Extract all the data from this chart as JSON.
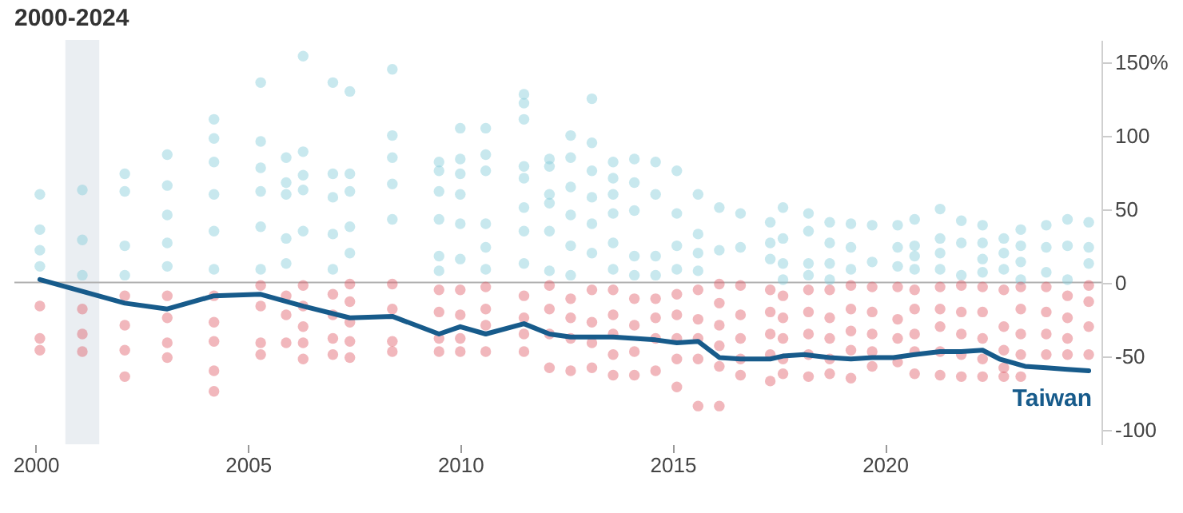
{
  "chart_data": {
    "type": "scatter",
    "title": "2000-2024",
    "xlim": [
      1999.5,
      2025.1
    ],
    "xticks": [
      2000,
      2005,
      2010,
      2015,
      2020
    ],
    "ylim": [
      -110,
      165
    ],
    "yticks": [
      {
        "value": 150,
        "label": "150%"
      },
      100,
      50,
      0,
      -50,
      -100
    ],
    "ref_lines": [
      {
        "axis": "y",
        "value": 0,
        "color": "#b0b0b0"
      }
    ],
    "bands": [
      {
        "axis": "x",
        "from": 2000.7,
        "to": 2001.5,
        "color": "#eaeef2"
      }
    ],
    "series": [
      {
        "color": "#86cbd9",
        "x": [
          2000.1,
          2000.1,
          2000.1,
          2000.1,
          2001.1,
          2001.1,
          2001.1,
          2002.1,
          2002.1,
          2002.1,
          2002.1,
          2003.1,
          2003.1,
          2003.1,
          2003.1,
          2003.1,
          2004.2,
          2004.2,
          2004.2,
          2004.2,
          2004.2,
          2004.2,
          2005.3,
          2005.3,
          2005.3,
          2005.3,
          2005.3,
          2005.3,
          2005.9,
          2005.9,
          2005.9,
          2005.9,
          2005.9,
          2006.3,
          2006.3,
          2006.3,
          2006.3,
          2006.3,
          2007.0,
          2007.0,
          2007.0,
          2007.0,
          2007.0,
          2007.4,
          2007.4,
          2007.4,
          2007.4,
          2007.4,
          2008.4,
          2008.4,
          2008.4,
          2008.4,
          2008.4,
          2009.5,
          2009.5,
          2009.5,
          2009.5,
          2009.5,
          2009.5,
          2010.0,
          2010.0,
          2010.0,
          2010.0,
          2010.0,
          2010.0,
          2010.6,
          2010.6,
          2010.6,
          2010.6,
          2010.6,
          2010.6,
          2011.5,
          2011.5,
          2011.5,
          2011.5,
          2011.5,
          2011.5,
          2011.5,
          2011.5,
          2012.1,
          2012.1,
          2012.1,
          2012.1,
          2012.1,
          2012.1,
          2012.6,
          2012.6,
          2012.6,
          2012.6,
          2012.6,
          2012.6,
          2013.1,
          2013.1,
          2013.1,
          2013.1,
          2013.1,
          2013.1,
          2013.6,
          2013.6,
          2013.6,
          2013.6,
          2013.6,
          2013.6,
          2014.1,
          2014.1,
          2014.1,
          2014.1,
          2014.1,
          2014.6,
          2014.6,
          2014.6,
          2014.6,
          2015.1,
          2015.1,
          2015.1,
          2015.1,
          2015.6,
          2015.6,
          2015.6,
          2015.6,
          2016.1,
          2016.1,
          2016.6,
          2016.6,
          2017.3,
          2017.3,
          2017.3,
          2017.6,
          2017.6,
          2017.6,
          2017.6,
          2018.2,
          2018.2,
          2018.2,
          2018.2,
          2018.7,
          2018.7,
          2018.7,
          2018.7,
          2019.2,
          2019.2,
          2019.2,
          2019.7,
          2019.7,
          2020.3,
          2020.3,
          2020.3,
          2020.7,
          2020.7,
          2020.7,
          2020.7,
          2021.3,
          2021.3,
          2021.3,
          2021.3,
          2021.8,
          2021.8,
          2021.8,
          2022.3,
          2022.3,
          2022.3,
          2022.3,
          2022.8,
          2022.8,
          2022.8,
          2023.2,
          2023.2,
          2023.2,
          2023.2,
          2023.8,
          2023.8,
          2023.8,
          2024.3,
          2024.3,
          2024.3,
          2024.8,
          2024.8,
          2024.8
        ],
        "values": [
          60,
          36,
          22,
          11,
          63,
          29,
          5,
          74,
          62,
          25,
          5,
          87,
          66,
          46,
          27,
          11,
          111,
          98,
          82,
          60,
          35,
          9,
          136,
          96,
          78,
          62,
          38,
          9,
          85,
          68,
          60,
          30,
          13,
          154,
          89,
          73,
          63,
          35,
          136,
          74,
          58,
          33,
          9,
          130,
          74,
          62,
          38,
          20,
          145,
          100,
          85,
          67,
          43,
          82,
          76,
          62,
          43,
          18,
          8,
          105,
          84,
          74,
          60,
          40,
          16,
          105,
          87,
          76,
          40,
          24,
          9,
          128,
          122,
          111,
          79,
          71,
          51,
          35,
          13,
          84,
          79,
          60,
          54,
          35,
          8,
          100,
          85,
          65,
          46,
          25,
          5,
          125,
          95,
          76,
          58,
          40,
          20,
          82,
          71,
          60,
          47,
          27,
          9,
          84,
          68,
          49,
          18,
          5,
          82,
          60,
          18,
          5,
          76,
          47,
          25,
          9,
          60,
          33,
          20,
          8,
          51,
          22,
          47,
          24,
          41,
          27,
          16,
          51,
          30,
          13,
          2,
          47,
          35,
          13,
          5,
          41,
          27,
          13,
          2,
          40,
          24,
          9,
          39,
          14,
          39,
          24,
          11,
          43,
          25,
          18,
          9,
          50,
          30,
          20,
          9,
          42,
          27,
          5,
          39,
          27,
          16,
          7,
          30,
          20,
          9,
          36,
          25,
          14,
          2,
          39,
          24,
          7,
          43,
          25,
          2,
          41,
          24,
          13
        ]
      },
      {
        "color": "#e0606b",
        "x": [
          2000.1,
          2000.1,
          2000.1,
          2001.1,
          2001.1,
          2001.1,
          2002.1,
          2002.1,
          2002.1,
          2002.1,
          2003.1,
          2003.1,
          2003.1,
          2003.1,
          2004.2,
          2004.2,
          2004.2,
          2004.2,
          2004.2,
          2005.3,
          2005.3,
          2005.3,
          2005.3,
          2005.9,
          2005.9,
          2005.9,
          2006.3,
          2006.3,
          2006.3,
          2006.3,
          2006.3,
          2007.0,
          2007.0,
          2007.0,
          2007.0,
          2007.4,
          2007.4,
          2007.4,
          2007.4,
          2007.4,
          2008.4,
          2008.4,
          2008.4,
          2008.4,
          2009.5,
          2009.5,
          2009.5,
          2009.5,
          2010.0,
          2010.0,
          2010.0,
          2010.0,
          2010.6,
          2010.6,
          2010.6,
          2010.6,
          2011.5,
          2011.5,
          2011.5,
          2011.5,
          2012.1,
          2012.1,
          2012.1,
          2012.1,
          2012.6,
          2012.6,
          2012.6,
          2012.6,
          2013.1,
          2013.1,
          2013.1,
          2013.1,
          2013.6,
          2013.6,
          2013.6,
          2013.6,
          2013.6,
          2014.1,
          2014.1,
          2014.1,
          2014.1,
          2014.6,
          2014.6,
          2014.6,
          2014.6,
          2015.1,
          2015.1,
          2015.1,
          2015.1,
          2015.1,
          2015.6,
          2015.6,
          2015.6,
          2015.6,
          2015.6,
          2016.1,
          2016.1,
          2016.1,
          2016.1,
          2016.1,
          2016.1,
          2016.6,
          2016.6,
          2016.6,
          2016.6,
          2016.6,
          2017.3,
          2017.3,
          2017.3,
          2017.3,
          2017.3,
          2017.6,
          2017.6,
          2017.6,
          2017.6,
          2017.6,
          2018.2,
          2018.2,
          2018.2,
          2018.2,
          2018.2,
          2018.7,
          2018.7,
          2018.7,
          2018.7,
          2018.7,
          2019.2,
          2019.2,
          2019.2,
          2019.2,
          2019.2,
          2019.7,
          2019.7,
          2019.7,
          2019.7,
          2019.7,
          2020.3,
          2020.3,
          2020.3,
          2020.3,
          2020.7,
          2020.7,
          2020.7,
          2020.7,
          2020.7,
          2021.3,
          2021.3,
          2021.3,
          2021.3,
          2021.3,
          2021.8,
          2021.8,
          2021.8,
          2021.8,
          2021.8,
          2022.3,
          2022.3,
          2022.3,
          2022.3,
          2022.3,
          2022.8,
          2022.8,
          2022.8,
          2022.8,
          2022.8,
          2023.2,
          2023.2,
          2023.2,
          2023.2,
          2023.2,
          2023.8,
          2023.8,
          2023.8,
          2023.8,
          2024.3,
          2024.3,
          2024.3,
          2024.3,
          2024.8,
          2024.8,
          2024.8,
          2024.8
        ],
        "values": [
          -16,
          -38,
          -46,
          -18,
          -35,
          -47,
          -9,
          -29,
          -46,
          -64,
          -9,
          -24,
          -41,
          -51,
          -9,
          -27,
          -40,
          -60,
          -74,
          -2,
          -16,
          -41,
          -49,
          -9,
          -22,
          -41,
          -2,
          -16,
          -30,
          -41,
          -52,
          -8,
          -22,
          -38,
          -49,
          -1,
          -13,
          -27,
          -40,
          -51,
          -1,
          -18,
          -40,
          -47,
          -5,
          -20,
          -38,
          -47,
          -5,
          -22,
          -38,
          -47,
          -3,
          -18,
          -29,
          -47,
          -9,
          -24,
          -35,
          -47,
          -2,
          -18,
          -35,
          -58,
          -11,
          -24,
          -38,
          -60,
          -5,
          -27,
          -41,
          -58,
          -5,
          -22,
          -35,
          -49,
          -63,
          -11,
          -29,
          -47,
          -63,
          -11,
          -24,
          -38,
          -60,
          -8,
          -22,
          -38,
          -52,
          -71,
          -5,
          -25,
          -38,
          -52,
          -84,
          -1,
          -14,
          -29,
          -43,
          -57,
          -84,
          -2,
          -22,
          -38,
          -52,
          -63,
          -5,
          -20,
          -35,
          -49,
          -67,
          -9,
          -24,
          -38,
          -52,
          -62,
          -5,
          -20,
          -35,
          -49,
          -64,
          -5,
          -24,
          -38,
          -52,
          -62,
          -2,
          -18,
          -33,
          -46,
          -65,
          -3,
          -20,
          -35,
          -47,
          -57,
          -3,
          -25,
          -38,
          -54,
          -5,
          -18,
          -35,
          -47,
          -62,
          -3,
          -18,
          -30,
          -47,
          -63,
          -2,
          -20,
          -35,
          -49,
          -64,
          -3,
          -20,
          -38,
          -52,
          -64,
          -5,
          -30,
          -46,
          -58,
          -64,
          -3,
          -18,
          -35,
          -49,
          -64,
          -3,
          -20,
          -35,
          -49,
          -9,
          -24,
          -38,
          -49,
          -2,
          -13,
          -30,
          -49
        ]
      },
      {
        "type": "line",
        "name": "Taiwan",
        "color": "#175b8b",
        "x": [
          2000.1,
          2002.1,
          2003.1,
          2004.2,
          2005.3,
          2006.3,
          2007.4,
          2008.4,
          2009.5,
          2010.0,
          2010.6,
          2011.5,
          2012.1,
          2012.6,
          2013.1,
          2013.6,
          2014.1,
          2014.6,
          2015.1,
          2015.6,
          2016.1,
          2016.6,
          2017.3,
          2017.6,
          2018.1,
          2018.7,
          2019.2,
          2019.7,
          2020.2,
          2020.7,
          2021.3,
          2021.8,
          2022.3,
          2022.7,
          2023.3,
          2023.8,
          2024.3,
          2024.8
        ],
        "values": [
          2,
          -14,
          -18,
          -9,
          -8,
          -16,
          -24,
          -23,
          -35,
          -30,
          -35,
          -28,
          -35,
          -37,
          -37,
          -37,
          -38,
          -39,
          -41,
          -40,
          -51,
          -52,
          -52,
          -50,
          -49,
          -51,
          -52,
          -51,
          -51,
          -49,
          -47,
          -47,
          -46,
          -52,
          -57,
          -58,
          -59,
          -60
        ]
      }
    ]
  }
}
